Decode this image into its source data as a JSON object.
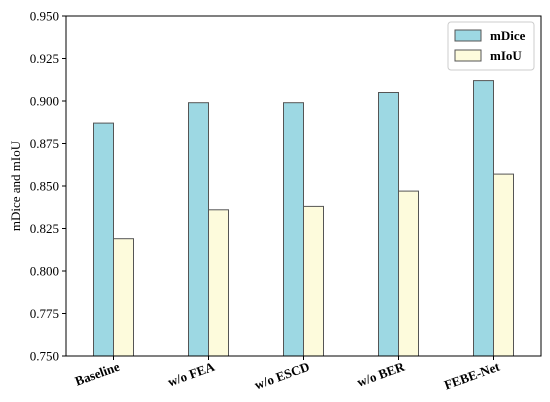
{
  "chart_data": {
    "type": "bar",
    "categories": [
      "Baseline",
      "w/o FEA",
      "w/o ESCD",
      "w/o BER",
      "FEBE-Net"
    ],
    "series": [
      {
        "name": "mDice",
        "values": [
          0.887,
          0.899,
          0.899,
          0.905,
          0.912
        ],
        "color": "#9dd8e3"
      },
      {
        "name": "mIoU",
        "values": [
          0.819,
          0.836,
          0.838,
          0.847,
          0.857
        ],
        "color": "#fdfbdc"
      }
    ],
    "ylabel": "mDice and mIoU",
    "xlabel": "",
    "ylim": [
      0.75,
      0.95
    ],
    "yticks": [
      "0.750",
      "0.775",
      "0.800",
      "0.825",
      "0.850",
      "0.875",
      "0.900",
      "0.925",
      "0.950"
    ],
    "legend_position": "top-right",
    "bar_edge_color": "#555555",
    "grid": false
  }
}
